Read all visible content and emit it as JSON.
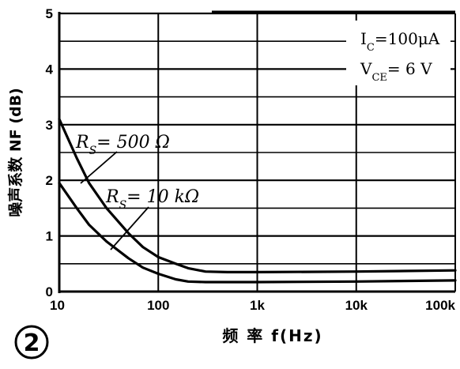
{
  "chart_data": {
    "type": "line",
    "title": "",
    "xlabel": "频 率 f(Hz)",
    "ylabel": "噪声系数 NF (dB)",
    "xscale": "log",
    "xlim": [
      10,
      100000
    ],
    "ylim": [
      0,
      5
    ],
    "x_ticks": [
      10,
      100,
      1000,
      10000,
      100000
    ],
    "x_tick_labels": [
      "10",
      "100",
      "1k",
      "10k",
      "100k"
    ],
    "y_ticks": [
      0,
      1,
      2,
      3,
      4,
      5
    ],
    "y_tick_labels": [
      "0",
      "1",
      "2",
      "3",
      "4",
      "5"
    ],
    "grid": true,
    "series": [
      {
        "name": "Rs=500Ω",
        "label_main": "R",
        "label_sub": "S",
        "label_rest": "= 500 Ω",
        "x": [
          10,
          15,
          20,
          30,
          50,
          70,
          100,
          150,
          200,
          300,
          500,
          1000,
          10000,
          100000
        ],
        "y": [
          3.1,
          2.4,
          1.95,
          1.5,
          1.05,
          0.8,
          0.62,
          0.5,
          0.42,
          0.36,
          0.35,
          0.35,
          0.36,
          0.38
        ]
      },
      {
        "name": "Rs=10kΩ",
        "label_main": "R",
        "label_sub": "S",
        "label_rest": "= 10 kΩ",
        "x": [
          10,
          15,
          20,
          30,
          50,
          70,
          100,
          150,
          200,
          300,
          500,
          1000,
          10000,
          100000
        ],
        "y": [
          1.95,
          1.5,
          1.2,
          0.9,
          0.6,
          0.43,
          0.32,
          0.22,
          0.18,
          0.17,
          0.17,
          0.17,
          0.18,
          0.2
        ]
      }
    ],
    "conditions": [
      {
        "main": "I",
        "sub": "C",
        "rest": "=100μA"
      },
      {
        "main": "V",
        "sub": "CE",
        "rest": "= 6 V"
      }
    ],
    "figure_number": "2"
  },
  "colors": {
    "line": "#000000",
    "background": "#ffffff"
  }
}
